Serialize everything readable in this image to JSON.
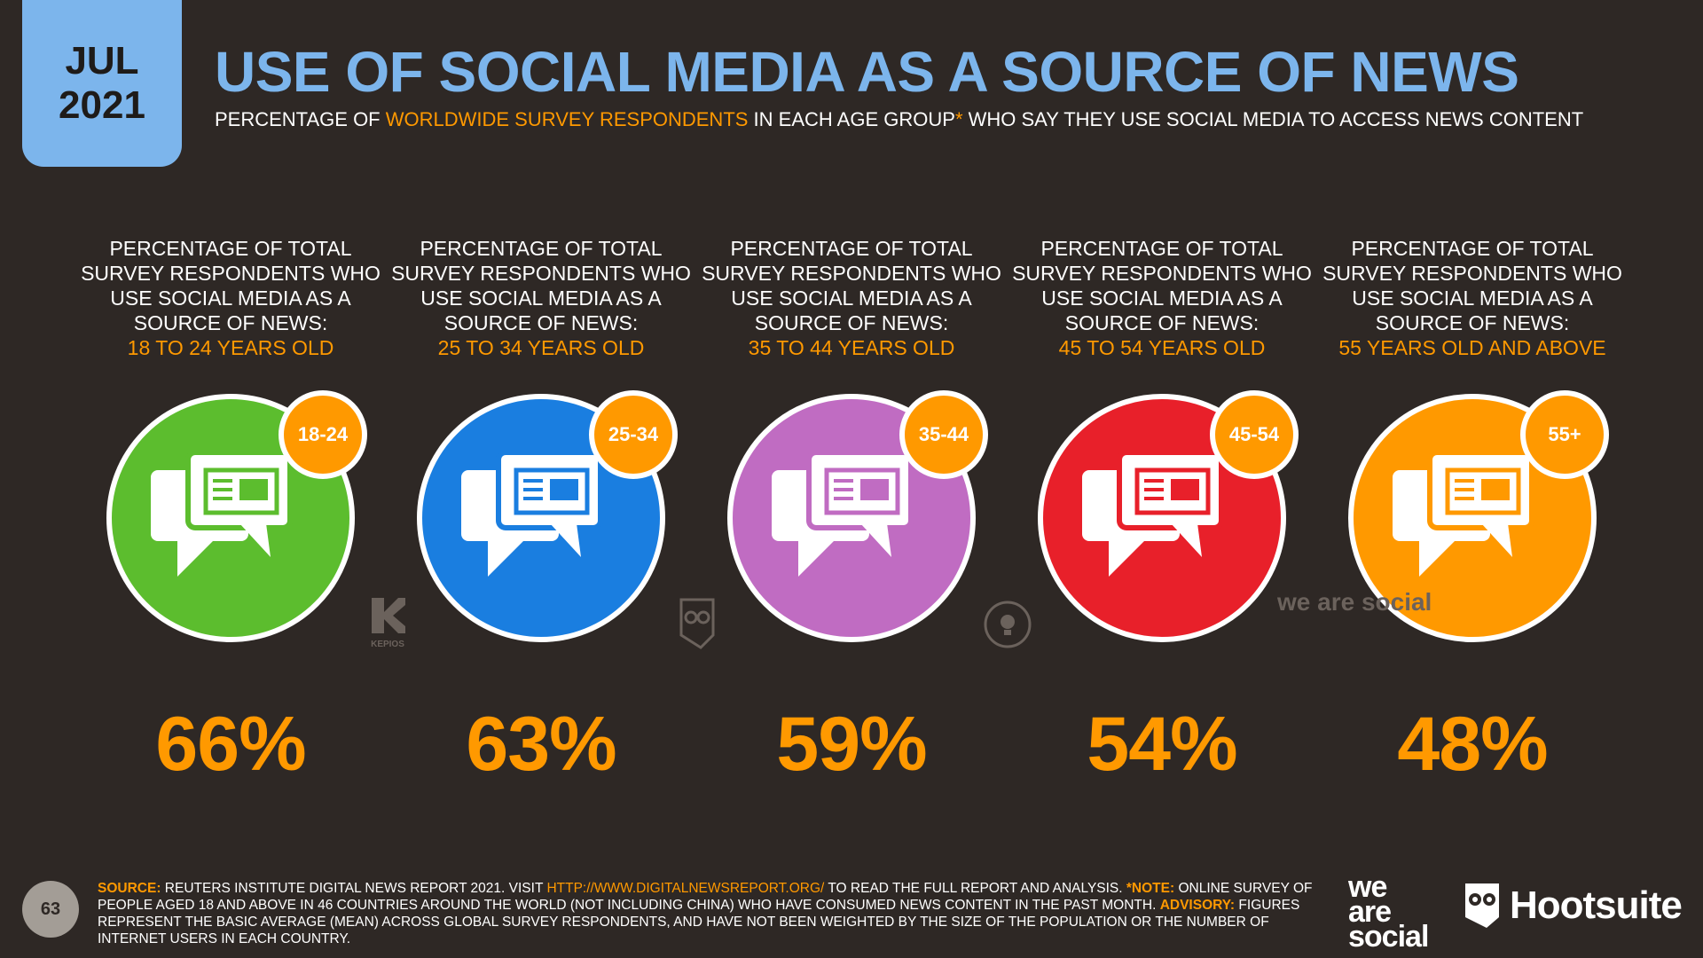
{
  "date": {
    "month": "JUL",
    "year": "2021"
  },
  "title": "USE OF SOCIAL MEDIA AS A SOURCE OF NEWS",
  "subtitle": {
    "pre": "PERCENTAGE OF ",
    "highlight": "WORLDWIDE SURVEY RESPONDENTS",
    "mid": " IN EACH AGE GROUP",
    "star": "*",
    "post": " WHO SAY THEY USE SOCIAL MEDIA TO ACCESS NEWS CONTENT"
  },
  "columns": [
    {
      "desc": "PERCENTAGE OF TOTAL SURVEY RESPONDENTS WHO USE SOCIAL MEDIA AS A SOURCE OF NEWS:",
      "age_label": "18 TO 24 YEARS OLD",
      "badge": "18-24",
      "value": "66%",
      "color": "#5cbd2e"
    },
    {
      "desc": "PERCENTAGE OF TOTAL SURVEY RESPONDENTS WHO USE SOCIAL MEDIA AS A SOURCE OF NEWS:",
      "age_label": "25 TO 34 YEARS OLD",
      "badge": "25-34",
      "value": "63%",
      "color": "#1a7ee0"
    },
    {
      "desc": "PERCENTAGE OF TOTAL SURVEY RESPONDENTS WHO USE SOCIAL MEDIA AS A SOURCE OF NEWS:",
      "age_label": "35 TO 44 YEARS OLD",
      "badge": "35-44",
      "value": "59%",
      "color": "#c06cc2"
    },
    {
      "desc": "PERCENTAGE OF TOTAL SURVEY RESPONDENTS WHO USE SOCIAL MEDIA AS A SOURCE OF NEWS:",
      "age_label": "45 TO 54 YEARS OLD",
      "badge": "45-54",
      "value": "54%",
      "color": "#e8202a"
    },
    {
      "desc": "PERCENTAGE OF TOTAL SURVEY RESPONDENTS WHO USE SOCIAL MEDIA AS A SOURCE OF NEWS:",
      "age_label": "55 YEARS OLD AND ABOVE",
      "badge": "55+",
      "value": "48%",
      "color": "#ff9900"
    }
  ],
  "watermarks": {
    "kepios": "KEPIOS",
    "we_are_social": "we are social"
  },
  "footer": {
    "source_label": "SOURCE:",
    "source_text": " REUTERS INSTITUTE DIGITAL NEWS REPORT 2021. VISIT ",
    "link": "HTTP://WWW.DIGITALNEWSREPORT.ORG/",
    "after_link": " TO READ THE FULL REPORT AND ANALYSIS. ",
    "note_label": "*NOTE:",
    "note_text": " ONLINE SURVEY OF PEOPLE AGED 18 AND ABOVE IN 46 COUNTRIES AROUND THE WORLD (NOT INCLUDING CHINA) WHO HAVE CONSUMED NEWS CONTENT IN THE PAST MONTH. ",
    "advisory_label": "ADVISORY:",
    "advisory_text": " FIGURES REPRESENT THE BASIC AVERAGE (MEAN) ACROSS GLOBAL SURVEY RESPONDENTS, AND HAVE NOT BEEN WEIGHTED BY THE SIZE OF THE POPULATION OR THE NUMBER OF INTERNET USERS IN EACH COUNTRY."
  },
  "page_number": "63",
  "brand": {
    "we": "we",
    "are": "are",
    "social": "social",
    "hootsuite": "Hootsuite"
  }
}
